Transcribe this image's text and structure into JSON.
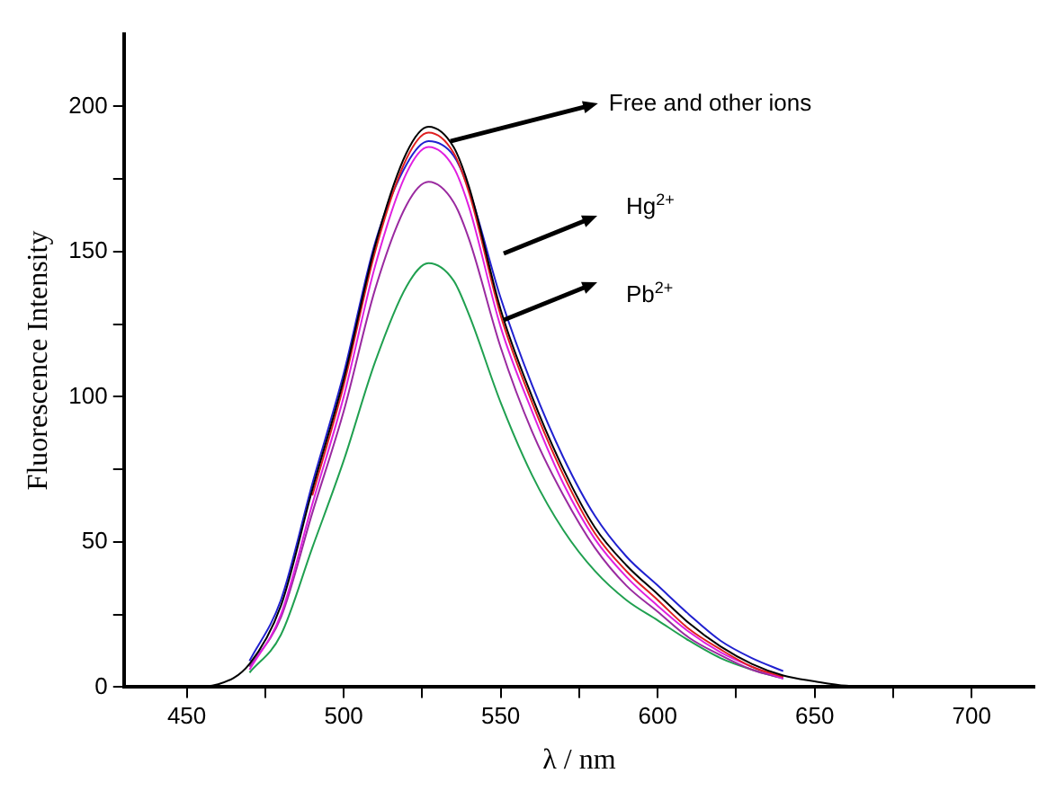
{
  "chart_data": {
    "type": "line",
    "xlabel": "λ / nm",
    "ylabel": "Fluorescence Intensity",
    "annotations": [
      {
        "text": "Free and other ions",
        "x": 534,
        "y": 188
      },
      "Hg$^{2+}$",
      "Pb$^{2+}$"
    ],
    "x": [
      430,
      450,
      460,
      470,
      480,
      490,
      500,
      510,
      520,
      527,
      535,
      540,
      550,
      560,
      570,
      580,
      590,
      600,
      610,
      620,
      630,
      640,
      650,
      660,
      680,
      700,
      720
    ],
    "series": [
      {
        "color": "#000000",
        "values": [
          0,
          0,
          1,
          8,
          28,
          68,
          106,
          152,
          184,
          193,
          186,
          172,
          130,
          100,
          75,
          55,
          42,
          32,
          22,
          14,
          8,
          4,
          2,
          0.5,
          0,
          0,
          0
        ]
      },
      {
        "color": "#e02020",
        "values": [
          null,
          null,
          null,
          null,
          null,
          66,
          104,
          150,
          182,
          191,
          184,
          170,
          128,
          98,
          73,
          53,
          40,
          30,
          20,
          13,
          7,
          3.5,
          null,
          null,
          null,
          null,
          null
        ]
      },
      {
        "color": "#2020d0",
        "values": [
          null,
          null,
          null,
          9,
          30,
          70,
          108,
          153,
          180,
          188,
          183,
          171,
          134,
          104,
          79,
          59,
          45,
          35,
          25,
          16,
          10,
          5.5,
          null,
          null,
          null,
          null,
          null
        ]
      },
      {
        "color": "#e020e0",
        "values": [
          null,
          null,
          null,
          6,
          25,
          63,
          100,
          145,
          177,
          186,
          179,
          165,
          124,
          95,
          70,
          51,
          38,
          28,
          19,
          12,
          7,
          3,
          null,
          null,
          null,
          null,
          null
        ]
      },
      {
        "color": "#9a2aa0",
        "values": [
          null,
          null,
          null,
          7,
          24,
          60,
          95,
          137,
          166,
          174,
          167,
          154,
          117,
          88,
          66,
          48,
          35,
          26,
          17,
          11,
          6,
          3,
          null,
          null,
          null,
          null,
          null
        ]
      },
      {
        "color": "#20a050",
        "values": [
          null,
          null,
          null,
          5,
          18,
          48,
          78,
          112,
          138,
          146,
          140,
          128,
          98,
          73,
          54,
          40,
          30,
          23,
          16,
          10,
          6,
          3,
          null,
          null,
          null,
          null,
          null
        ]
      }
    ],
    "xlim": [
      430,
      720
    ],
    "xticks": [
      450,
      {
        "value": 475,
        "label": null
      },
      500,
      {
        "value": 525,
        "label": null
      },
      550,
      {
        "value": 575,
        "label": null
      },
      600,
      {
        "value": 625,
        "label": null
      },
      650,
      {
        "value": 675,
        "label": null
      },
      700
    ],
    "ylim": [
      0,
      225
    ],
    "yticks": [
      0,
      {
        "value": 25,
        "label": null
      },
      50,
      {
        "value": 75,
        "label": null
      },
      100,
      {
        "value": 125,
        "label": null
      },
      150,
      {
        "value": 175,
        "label": null
      },
      200
    ],
    "grid": false,
    "legend": false,
    "marker": "none",
    "line_style": "solid"
  }
}
